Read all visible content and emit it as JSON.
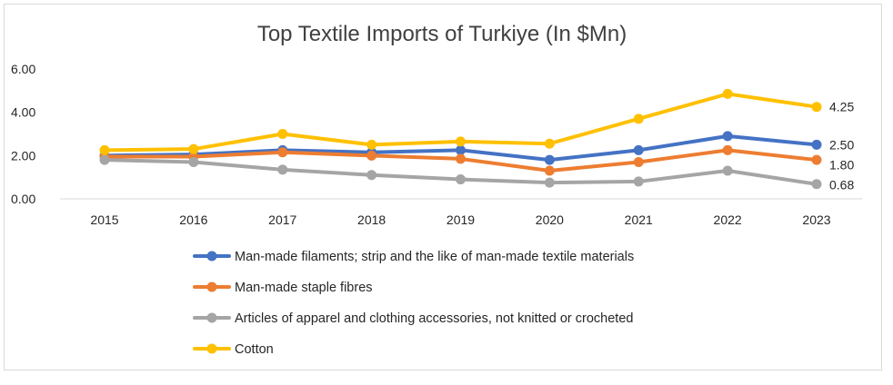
{
  "chart_data": {
    "type": "line",
    "title": "Top Textile Imports of Turkiye (In $Mn)",
    "xlabel": "",
    "ylabel": "",
    "categories": [
      "2015",
      "2016",
      "2017",
      "2018",
      "2019",
      "2020",
      "2021",
      "2022",
      "2023"
    ],
    "ylim": [
      0,
      6
    ],
    "y_ticks": [
      "0.00",
      "2.00",
      "4.00",
      "6.00"
    ],
    "grid": false,
    "legend_position": "bottom",
    "series": [
      {
        "name": "Man-made filaments; strip and the like of man-made textile materials",
        "color": "#4472c4",
        "values": [
          2.0,
          2.05,
          2.25,
          2.15,
          2.25,
          1.8,
          2.25,
          2.9,
          2.5
        ],
        "end_label": "2.50"
      },
      {
        "name": "Man-made staple fibres",
        "color": "#ed7d31",
        "values": [
          1.95,
          1.95,
          2.15,
          2.0,
          1.85,
          1.3,
          1.7,
          2.25,
          1.8
        ],
        "end_label": "1.80"
      },
      {
        "name": "Articles of apparel and clothing accessories, not knitted or crocheted",
        "color": "#a5a5a5",
        "values": [
          1.8,
          1.7,
          1.35,
          1.1,
          0.9,
          0.75,
          0.8,
          1.3,
          0.68
        ],
        "end_label": "0.68"
      },
      {
        "name": "Cotton",
        "color": "#ffc000",
        "values": [
          2.25,
          2.3,
          3.0,
          2.5,
          2.65,
          2.55,
          3.7,
          4.85,
          4.25
        ],
        "end_label": "4.25"
      }
    ]
  }
}
